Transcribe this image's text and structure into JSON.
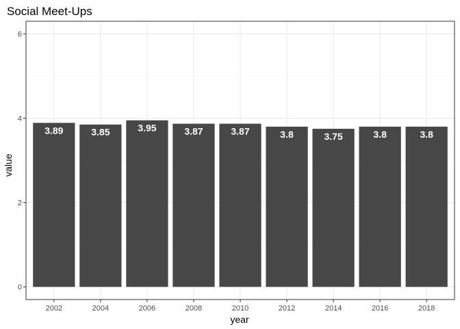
{
  "chart_data": {
    "type": "bar",
    "title": "Social Meet-Ups",
    "xlabel": "year",
    "ylabel": "value",
    "categories": [
      "2002",
      "2004",
      "2006",
      "2008",
      "2010",
      "2012",
      "2014",
      "2016",
      "2018"
    ],
    "values": [
      3.89,
      3.85,
      3.95,
      3.87,
      3.87,
      3.8,
      3.75,
      3.8,
      3.8
    ],
    "data_labels": [
      "3.89",
      "3.85",
      "3.95",
      "3.87",
      "3.87",
      "3.8",
      "3.75",
      "3.8",
      "3.8"
    ],
    "ylim": [
      -0.3,
      6.3
    ],
    "y_ticks": [
      0,
      2,
      4,
      6
    ],
    "y_tick_labels": [
      "0",
      "2",
      "4",
      "6"
    ],
    "grid": true,
    "colors": {
      "bar": "#474747",
      "panel_border": "#333333",
      "grid_major": "#ebebeb",
      "grid_minor": "#f5f5f5",
      "data_label": "#ffffff"
    }
  }
}
